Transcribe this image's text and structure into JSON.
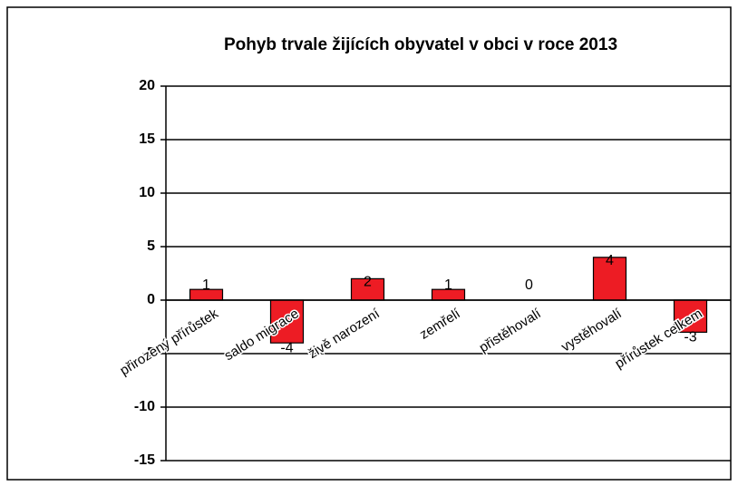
{
  "chart_data": {
    "type": "bar",
    "title": "Pohyb trvale žijících obyvatel v obci v roce 2013",
    "categories": [
      "přirozený přírůstek",
      "saldo migrace",
      "živě narození",
      "zemřelí",
      "přistěhovalí",
      "vystěhovalí",
      "přírůstek celkem"
    ],
    "values": [
      1,
      -4,
      2,
      1,
      0,
      4,
      -3
    ],
    "color": "#ed1c24",
    "ylim": [
      -15,
      20
    ],
    "yticks": [
      -15,
      -10,
      -5,
      0,
      5,
      10,
      15,
      20
    ],
    "grid": true,
    "data_labels": true
  }
}
